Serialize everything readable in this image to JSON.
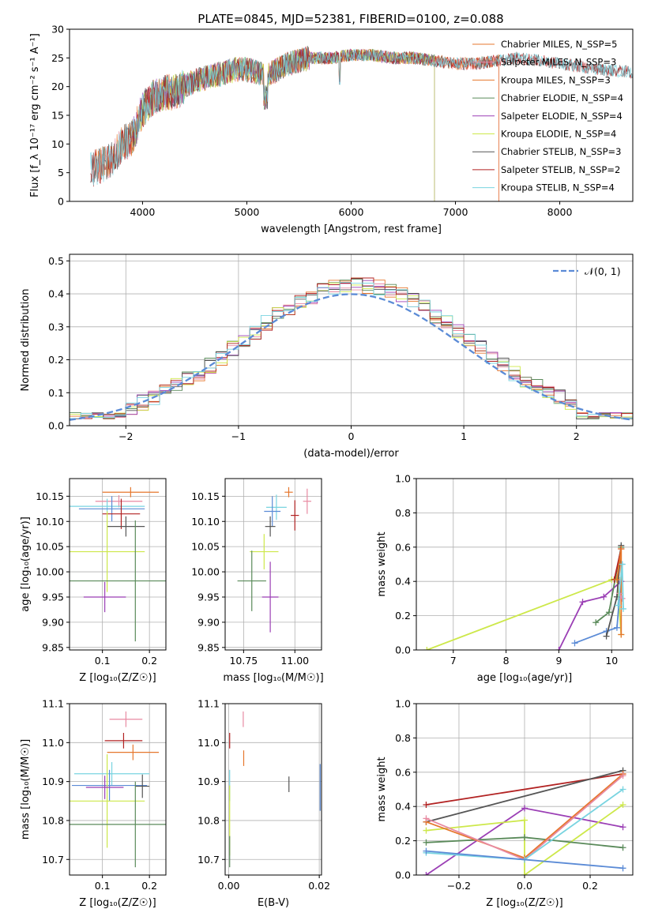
{
  "title": "PLATE=0845, MJD=52381, FIBERID=0100, z=0.088",
  "chart_data": [
    {
      "id": "spectrum",
      "type": "line",
      "xlabel": "wavelength [Angstrom, rest frame]",
      "ylabel": "Flux [f_λ 10⁻¹⁷ erg cm⁻² s⁻¹ A⁻¹]",
      "xlim": [
        3300,
        8700
      ],
      "ylim": [
        0,
        30
      ],
      "xticks": [
        4000,
        5000,
        6000,
        7000,
        8000
      ],
      "yticks": [
        0,
        5,
        10,
        15,
        20,
        25,
        30
      ],
      "grid": false,
      "legend_position": "top-right",
      "series": [
        {
          "name": "Chabrier MILES, N_SSP=5",
          "color": "#e6772d",
          "range": [
            3540,
            7420
          ]
        },
        {
          "name": "Salpeter MILES, N_SSP=3",
          "color": "#e88aa2",
          "range": [
            3540,
            7420
          ]
        },
        {
          "name": "Kroupa MILES, N_SSP=3",
          "color": "#e6772d",
          "range": [
            3540,
            7420
          ]
        },
        {
          "name": "Chabrier ELODIE, N_SSP=4",
          "color": "#5a8a5a",
          "range": [
            3900,
            6800
          ]
        },
        {
          "name": "Salpeter ELODIE, N_SSP=4",
          "color": "#9b3fb5",
          "range": [
            3900,
            6800
          ]
        },
        {
          "name": "Kroupa ELODIE, N_SSP=4",
          "color": "#cde84a",
          "range": [
            3900,
            6800
          ]
        },
        {
          "name": "Chabrier STELIB, N_SSP=3",
          "color": "#555555",
          "range": [
            3500,
            8700
          ]
        },
        {
          "name": "Salpeter STELIB, N_SSP=2",
          "color": "#b22222",
          "range": [
            3500,
            8700
          ]
        },
        {
          "name": "Kroupa STELIB, N_SSP=4",
          "color": "#79d4e0",
          "range": [
            3500,
            8700
          ]
        }
      ],
      "continuum": [
        [
          3500,
          5.5
        ],
        [
          3700,
          7
        ],
        [
          3800,
          10
        ],
        [
          3900,
          11
        ],
        [
          4000,
          16
        ],
        [
          4100,
          18
        ],
        [
          4200,
          19
        ],
        [
          4300,
          19
        ],
        [
          4400,
          20
        ],
        [
          4500,
          21
        ],
        [
          4700,
          22
        ],
        [
          4900,
          23
        ],
        [
          5000,
          23
        ],
        [
          5200,
          22
        ],
        [
          5400,
          24
        ],
        [
          5600,
          25
        ],
        [
          5800,
          25
        ],
        [
          6000,
          25.5
        ],
        [
          6200,
          25.5
        ],
        [
          6400,
          25
        ],
        [
          6600,
          25
        ],
        [
          6800,
          24.5
        ],
        [
          7000,
          24
        ],
        [
          7200,
          24
        ],
        [
          7400,
          24.5
        ],
        [
          7600,
          25
        ],
        [
          8000,
          24
        ],
        [
          8400,
          23
        ],
        [
          8700,
          22.5
        ]
      ]
    },
    {
      "id": "residuals",
      "type": "area",
      "xlabel": "(data-model)/error",
      "ylabel": "Normed distribution",
      "xlim": [
        -2.5,
        2.5
      ],
      "ylim": [
        0,
        0.52
      ],
      "xticks": [
        -2,
        -1,
        0,
        1,
        2
      ],
      "yticks": [
        0.0,
        0.1,
        0.2,
        0.3,
        0.4,
        0.5
      ],
      "grid": true,
      "legend_position": "top-right",
      "reference_curve": {
        "name": "𝒩(0, 1)",
        "color": "#5b8bd6"
      },
      "histogram_colors": [
        "#e6772d",
        "#e88aa2",
        "#5a8a5a",
        "#9b3fb5",
        "#cde84a",
        "#555555",
        "#b22222",
        "#79d4e0"
      ]
    },
    {
      "id": "age-vs-Z",
      "type": "scatter",
      "xlabel": "Z [log₁₀(Z/Z☉)]",
      "ylabel": "age  [log₁₀(age/yr)]",
      "xlim": [
        0.03,
        0.235
      ],
      "ylim": [
        9.845,
        10.185
      ],
      "xticks": [
        0.1,
        0.2
      ],
      "yticks": [
        9.85,
        9.9,
        9.95,
        10.0,
        10.05,
        10.1,
        10.15
      ],
      "grid": true,
      "points": [
        {
          "x": 0.16,
          "y": 10.158,
          "xerr": 0.06,
          "yerr": 0.01,
          "color": "#e6772d"
        },
        {
          "x": 0.135,
          "y": 10.14,
          "xerr": 0.05,
          "yerr": 0.012,
          "color": "#e88aa2"
        },
        {
          "x": 0.11,
          "y": 10.13,
          "xerr": 0.08,
          "yerr": 0.015,
          "color": "#79d4e0"
        },
        {
          "x": 0.12,
          "y": 10.125,
          "xerr": 0.07,
          "yerr": 0.025,
          "color": "#5b8bd6"
        },
        {
          "x": 0.14,
          "y": 10.115,
          "xerr": 0.04,
          "yerr": 0.03,
          "color": "#b22222"
        },
        {
          "x": 0.15,
          "y": 10.09,
          "xerr": 0.04,
          "yerr": 0.02,
          "color": "#555555"
        },
        {
          "x": 0.11,
          "y": 10.04,
          "xerr": 0.08,
          "yerr": 0.08,
          "color": "#cde84a"
        },
        {
          "x": 0.17,
          "y": 9.982,
          "xerr": 0.14,
          "yerr": 0.12,
          "color": "#5a8a5a"
        },
        {
          "x": 0.105,
          "y": 9.95,
          "xerr": 0.045,
          "yerr": 0.03,
          "color": "#9b3fb5"
        }
      ]
    },
    {
      "id": "age-vs-mass",
      "type": "scatter",
      "xlabel": "mass [log₁₀(M/M☉)]",
      "ylabel": "",
      "xlim": [
        10.66,
        11.13
      ],
      "ylim": [
        9.845,
        10.185
      ],
      "xticks": [
        10.75,
        11.0
      ],
      "yticks": [
        9.85,
        9.9,
        9.95,
        10.0,
        10.05,
        10.1,
        10.15
      ],
      "grid": true,
      "points": [
        {
          "x": 10.97,
          "y": 10.158,
          "xerr": 0.02,
          "yerr": 0.01,
          "color": "#e6772d"
        },
        {
          "x": 11.06,
          "y": 10.14,
          "xerr": 0.02,
          "yerr": 0.025,
          "color": "#e88aa2"
        },
        {
          "x": 10.91,
          "y": 10.128,
          "xerr": 0.05,
          "yerr": 0.025,
          "color": "#79d4e0"
        },
        {
          "x": 10.89,
          "y": 10.12,
          "xerr": 0.04,
          "yerr": 0.03,
          "color": "#5b8bd6"
        },
        {
          "x": 11.0,
          "y": 10.112,
          "xerr": 0.02,
          "yerr": 0.03,
          "color": "#b22222"
        },
        {
          "x": 10.88,
          "y": 10.09,
          "xerr": 0.025,
          "yerr": 0.02,
          "color": "#555555"
        },
        {
          "x": 10.85,
          "y": 10.04,
          "xerr": 0.07,
          "yerr": 0.035,
          "color": "#cde84a"
        },
        {
          "x": 10.79,
          "y": 9.982,
          "xerr": 0.07,
          "yerr": 0.06,
          "color": "#5a8a5a"
        },
        {
          "x": 10.88,
          "y": 9.95,
          "xerr": 0.04,
          "yerr": 0.07,
          "color": "#9b3fb5"
        }
      ]
    },
    {
      "id": "massweight-vs-age",
      "type": "line",
      "xlabel": "age  [log₁₀(age/yr)]",
      "ylabel": "mass weight",
      "xlim": [
        6.3,
        10.4
      ],
      "ylim": [
        0,
        1
      ],
      "xticks": [
        7,
        8,
        9,
        10
      ],
      "yticks": [
        0.0,
        0.2,
        0.4,
        0.6,
        0.8,
        1.0
      ],
      "grid": true,
      "series": [
        {
          "color": "#cde84a",
          "points": [
            [
              6.5,
              0.0
            ],
            [
              10.0,
              0.41
            ],
            [
              10.1,
              0.42
            ],
            [
              10.18,
              0.09
            ]
          ]
        },
        {
          "color": "#9b3fb5",
          "points": [
            [
              9.0,
              0.0
            ],
            [
              9.45,
              0.28
            ],
            [
              9.85,
              0.31
            ],
            [
              10.18,
              0.4
            ]
          ]
        },
        {
          "color": "#5b8bd6",
          "points": [
            [
              9.3,
              0.04
            ],
            [
              9.9,
              0.11
            ],
            [
              10.1,
              0.13
            ],
            [
              10.2,
              0.5
            ]
          ]
        },
        {
          "color": "#5a8a5a",
          "points": [
            [
              9.7,
              0.16
            ],
            [
              9.95,
              0.22
            ],
            [
              10.18,
              0.6
            ]
          ]
        },
        {
          "color": "#555555",
          "points": [
            [
              9.9,
              0.08
            ],
            [
              10.1,
              0.31
            ],
            [
              10.18,
              0.61
            ]
          ]
        },
        {
          "color": "#b22222",
          "points": [
            [
              10.05,
              0.41
            ],
            [
              10.18,
              0.59
            ]
          ]
        },
        {
          "color": "#e6772d",
          "points": [
            [
              10.1,
              0.41
            ],
            [
              10.18,
              0.59
            ],
            [
              10.18,
              0.09
            ]
          ]
        },
        {
          "color": "#e88aa2",
          "points": [
            [
              10.15,
              0.33
            ],
            [
              10.2,
              0.3
            ]
          ]
        },
        {
          "color": "#79d4e0",
          "points": [
            [
              10.12,
              0.26
            ],
            [
              10.2,
              0.5
            ],
            [
              10.22,
              0.24
            ]
          ]
        }
      ]
    },
    {
      "id": "mass-vs-Z",
      "type": "scatter",
      "xlabel": "Z [log₁₀(Z/Z☉)]",
      "ylabel": "mass [log₁₀(M/M☉)]",
      "xlim": [
        0.03,
        0.235
      ],
      "ylim": [
        10.66,
        11.1
      ],
      "xticks": [
        0.1,
        0.2
      ],
      "yticks": [
        10.7,
        10.8,
        10.9,
        11.0,
        11.1
      ],
      "grid": true,
      "points": [
        {
          "x": 0.15,
          "y": 11.06,
          "xerr": 0.035,
          "yerr": 0.02,
          "color": "#e88aa2"
        },
        {
          "x": 0.145,
          "y": 11.005,
          "xerr": 0.04,
          "yerr": 0.02,
          "color": "#b22222"
        },
        {
          "x": 0.165,
          "y": 10.975,
          "xerr": 0.055,
          "yerr": 0.02,
          "color": "#e6772d"
        },
        {
          "x": 0.12,
          "y": 10.92,
          "xerr": 0.08,
          "yerr": 0.03,
          "color": "#79d4e0"
        },
        {
          "x": 0.115,
          "y": 10.89,
          "xerr": 0.08,
          "yerr": 0.04,
          "color": "#5b8bd6"
        },
        {
          "x": 0.185,
          "y": 10.888,
          "xerr": 0.015,
          "yerr": 0.03,
          "color": "#555555"
        },
        {
          "x": 0.11,
          "y": 10.85,
          "xerr": 0.08,
          "yerr": 0.12,
          "color": "#cde84a"
        },
        {
          "x": 0.17,
          "y": 10.79,
          "xerr": 0.14,
          "yerr": 0.11,
          "color": "#5a8a5a"
        },
        {
          "x": 0.105,
          "y": 10.885,
          "xerr": 0.04,
          "yerr": 0.03,
          "color": "#9b3fb5"
        }
      ]
    },
    {
      "id": "mass-vs-EBV",
      "type": "scatter",
      "xlabel": "E(B-V)",
      "ylabel": "",
      "xlim": [
        -0.0008,
        0.0205
      ],
      "ylim": [
        10.66,
        11.1
      ],
      "xticks": [
        0.0,
        0.02
      ],
      "yticks": [
        10.7,
        10.8,
        10.9,
        11.0,
        11.1
      ],
      "grid": true,
      "points": [
        {
          "x": 0.0032,
          "y": 11.06,
          "xerr": 0.0,
          "yerr": 0.02,
          "color": "#e88aa2"
        },
        {
          "x": 0.0002,
          "y": 11.005,
          "xerr": 0.0,
          "yerr": 0.02,
          "color": "#b22222"
        },
        {
          "x": 0.0033,
          "y": 10.96,
          "xerr": 0.0,
          "yerr": 0.02,
          "color": "#e6772d"
        },
        {
          "x": 0.0002,
          "y": 10.89,
          "xerr": 0.0,
          "yerr": 0.04,
          "color": "#79d4e0"
        },
        {
          "x": 0.0202,
          "y": 10.885,
          "xerr": 0.0,
          "yerr": 0.06,
          "color": "#5b8bd6"
        },
        {
          "x": 0.0133,
          "y": 10.893,
          "xerr": 0.0,
          "yerr": 0.02,
          "color": "#555555"
        },
        {
          "x": 0.0002,
          "y": 10.8,
          "xerr": 0.0,
          "yerr": 0.09,
          "color": "#cde84a"
        },
        {
          "x": 0.0002,
          "y": 10.72,
          "xerr": 0.0,
          "yerr": 0.04,
          "color": "#5a8a5a"
        }
      ]
    },
    {
      "id": "massweight-vs-Z",
      "type": "line",
      "xlabel": "Z [log₁₀(Z/Z☉)]",
      "ylabel": "mass weight",
      "xlim": [
        -0.33,
        0.33
      ],
      "ylim": [
        0,
        1
      ],
      "xticks": [
        -0.2,
        0.0,
        0.2
      ],
      "yticks": [
        0.0,
        0.2,
        0.4,
        0.6,
        0.8,
        1.0
      ],
      "grid": true,
      "series": [
        {
          "color": "#b22222",
          "points": [
            [
              -0.3,
              0.41
            ],
            [
              0.3,
              0.59
            ]
          ]
        },
        {
          "color": "#555555",
          "points": [
            [
              -0.3,
              0.31
            ],
            [
              0.3,
              0.61
            ]
          ]
        },
        {
          "color": "#9b3fb5",
          "points": [
            [
              -0.3,
              0.0
            ],
            [
              0.0,
              0.39
            ],
            [
              0.3,
              0.28
            ]
          ]
        },
        {
          "color": "#cde84a",
          "points": [
            [
              -0.3,
              0.26
            ],
            [
              0.0,
              0.32
            ],
            [
              0.0,
              0.0
            ],
            [
              0.3,
              0.41
            ]
          ]
        },
        {
          "color": "#5a8a5a",
          "points": [
            [
              -0.3,
              0.19
            ],
            [
              0.0,
              0.22
            ],
            [
              0.3,
              0.16
            ]
          ]
        },
        {
          "color": "#e6772d",
          "points": [
            [
              -0.3,
              0.31
            ],
            [
              0.0,
              0.1
            ],
            [
              0.3,
              0.59
            ]
          ]
        },
        {
          "color": "#e88aa2",
          "points": [
            [
              -0.3,
              0.33
            ],
            [
              0.0,
              0.09
            ],
            [
              0.3,
              0.58
            ]
          ]
        },
        {
          "color": "#79d4e0",
          "points": [
            [
              -0.3,
              0.13
            ],
            [
              0.0,
              0.09
            ],
            [
              0.3,
              0.5
            ]
          ]
        },
        {
          "color": "#5b8bd6",
          "points": [
            [
              -0.3,
              0.14
            ],
            [
              0.3,
              0.04
            ]
          ]
        }
      ]
    }
  ]
}
